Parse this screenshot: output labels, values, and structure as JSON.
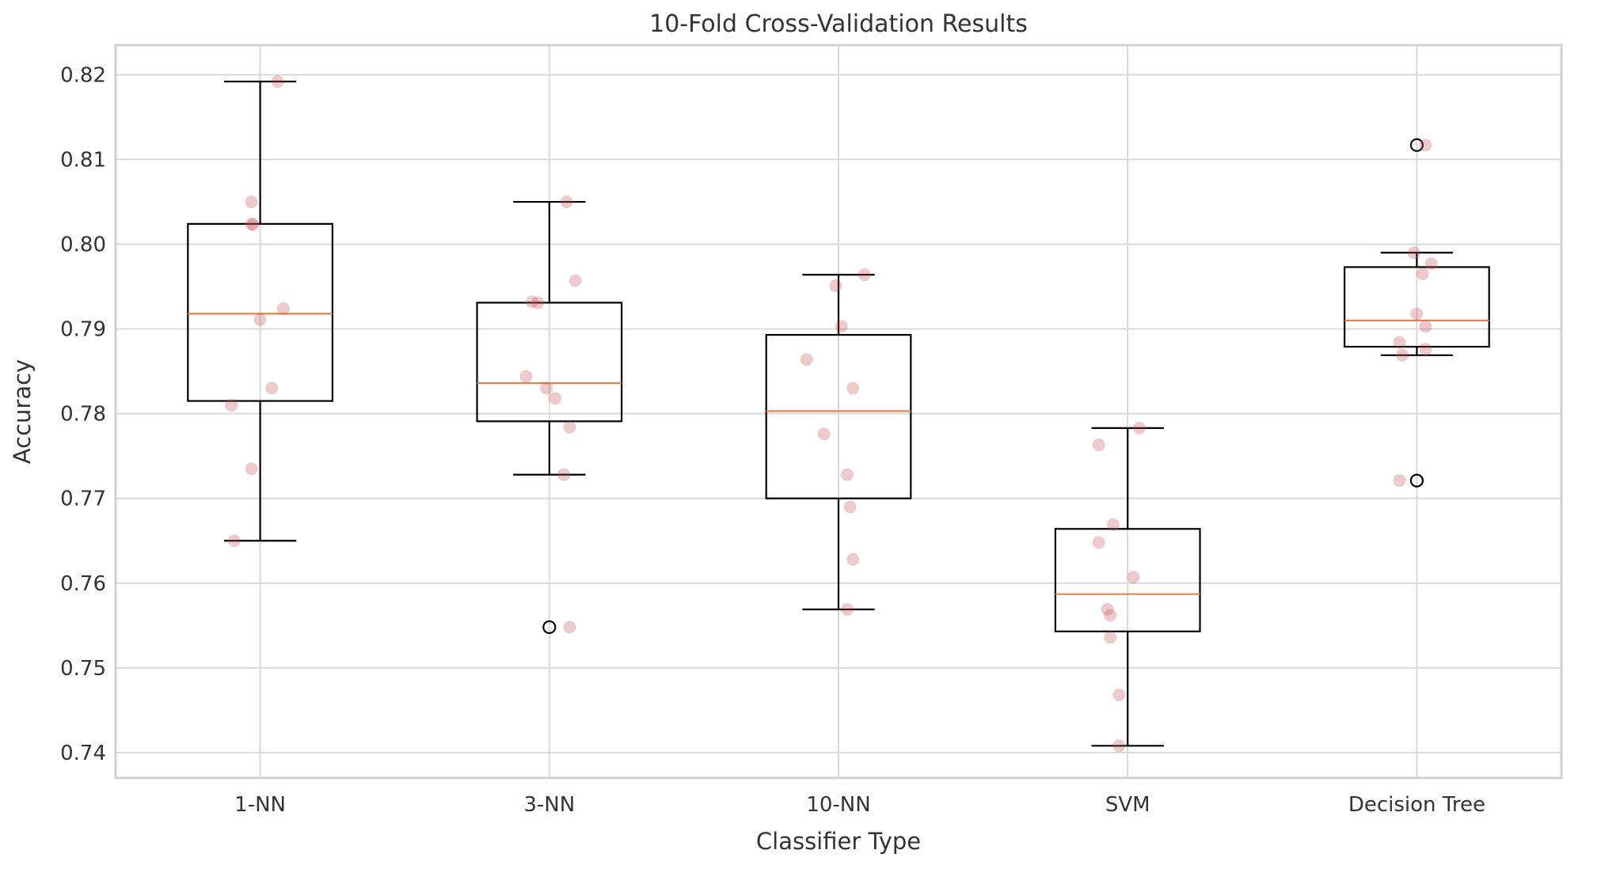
{
  "chart_data": {
    "type": "box",
    "title": "10-Fold Cross-Validation Results",
    "xlabel": "Classifier Type",
    "ylabel": "Accuracy",
    "ylim": [
      0.737,
      0.8235
    ],
    "yticks": [
      0.74,
      0.75,
      0.76,
      0.77,
      0.78,
      0.79,
      0.8,
      0.81,
      0.82
    ],
    "ytick_labels": [
      "0.74",
      "0.75",
      "0.76",
      "0.77",
      "0.78",
      "0.79",
      "0.80",
      "0.81",
      "0.82"
    ],
    "grid": true,
    "categories": [
      "1-NN",
      "3-NN",
      "10-NN",
      "SVM",
      "Decision Tree"
    ],
    "colors": {
      "box": "#000000",
      "median": "#dd8452",
      "points": "#c44e52",
      "grid": "#d9d9d9",
      "frame": "#d0d0d0"
    },
    "boxes": [
      {
        "name": "1-NN",
        "q1": 0.7815,
        "median": 0.7918,
        "q3": 0.8024,
        "whisker_low": 0.765,
        "whisker_high": 0.8192,
        "fliers": []
      },
      {
        "name": "3-NN",
        "q1": 0.7791,
        "median": 0.7836,
        "q3": 0.7931,
        "whisker_low": 0.7728,
        "whisker_high": 0.805,
        "fliers": [
          0.7548
        ]
      },
      {
        "name": "10-NN",
        "q1": 0.77,
        "median": 0.7803,
        "q3": 0.7893,
        "whisker_low": 0.7569,
        "whisker_high": 0.7964,
        "fliers": []
      },
      {
        "name": "SVM",
        "q1": 0.7543,
        "median": 0.7587,
        "q3": 0.7664,
        "whisker_low": 0.7408,
        "whisker_high": 0.7783,
        "fliers": []
      },
      {
        "name": "Decision Tree",
        "q1": 0.7879,
        "median": 0.791,
        "q3": 0.7973,
        "whisker_low": 0.7869,
        "whisker_high": 0.799,
        "fliers": [
          0.8117,
          0.7721
        ]
      }
    ],
    "jitter_points": [
      {
        "category": "1-NN",
        "x_offset": 0.06,
        "y": 0.8192
      },
      {
        "category": "1-NN",
        "x_offset": -0.03,
        "y": 0.805
      },
      {
        "category": "1-NN",
        "x_offset": -0.03,
        "y": 0.8024
      },
      {
        "category": "1-NN",
        "x_offset": -0.025,
        "y": 0.8023
      },
      {
        "category": "1-NN",
        "x_offset": 0.08,
        "y": 0.7924
      },
      {
        "category": "1-NN",
        "x_offset": 0.0,
        "y": 0.7911
      },
      {
        "category": "1-NN",
        "x_offset": 0.04,
        "y": 0.783
      },
      {
        "category": "1-NN",
        "x_offset": -0.1,
        "y": 0.781
      },
      {
        "category": "1-NN",
        "x_offset": -0.03,
        "y": 0.7735
      },
      {
        "category": "1-NN",
        "x_offset": -0.09,
        "y": 0.765
      },
      {
        "category": "3-NN",
        "x_offset": 0.06,
        "y": 0.805
      },
      {
        "category": "3-NN",
        "x_offset": 0.09,
        "y": 0.7957
      },
      {
        "category": "3-NN",
        "x_offset": -0.06,
        "y": 0.7932
      },
      {
        "category": "3-NN",
        "x_offset": -0.04,
        "y": 0.7931
      },
      {
        "category": "3-NN",
        "x_offset": -0.08,
        "y": 0.7844
      },
      {
        "category": "3-NN",
        "x_offset": -0.01,
        "y": 0.783
      },
      {
        "category": "3-NN",
        "x_offset": 0.02,
        "y": 0.7818
      },
      {
        "category": "3-NN",
        "x_offset": 0.07,
        "y": 0.7784
      },
      {
        "category": "3-NN",
        "x_offset": 0.05,
        "y": 0.7728
      },
      {
        "category": "3-NN",
        "x_offset": 0.07,
        "y": 0.7548
      },
      {
        "category": "10-NN",
        "x_offset": 0.09,
        "y": 0.7964
      },
      {
        "category": "10-NN",
        "x_offset": -0.01,
        "y": 0.7951
      },
      {
        "category": "10-NN",
        "x_offset": 0.01,
        "y": 0.7903
      },
      {
        "category": "10-NN",
        "x_offset": -0.11,
        "y": 0.7864
      },
      {
        "category": "10-NN",
        "x_offset": 0.05,
        "y": 0.783
      },
      {
        "category": "10-NN",
        "x_offset": -0.05,
        "y": 0.7776
      },
      {
        "category": "10-NN",
        "x_offset": 0.03,
        "y": 0.7728
      },
      {
        "category": "10-NN",
        "x_offset": 0.04,
        "y": 0.769
      },
      {
        "category": "10-NN",
        "x_offset": 0.05,
        "y": 0.7628
      },
      {
        "category": "10-NN",
        "x_offset": 0.03,
        "y": 0.7569
      },
      {
        "category": "SVM",
        "x_offset": 0.04,
        "y": 0.7783
      },
      {
        "category": "SVM",
        "x_offset": -0.1,
        "y": 0.7763
      },
      {
        "category": "SVM",
        "x_offset": -0.05,
        "y": 0.7669
      },
      {
        "category": "SVM",
        "x_offset": -0.1,
        "y": 0.7648
      },
      {
        "category": "SVM",
        "x_offset": 0.02,
        "y": 0.7607
      },
      {
        "category": "SVM",
        "x_offset": -0.07,
        "y": 0.7569
      },
      {
        "category": "SVM",
        "x_offset": -0.06,
        "y": 0.7562
      },
      {
        "category": "SVM",
        "x_offset": -0.06,
        "y": 0.7536
      },
      {
        "category": "SVM",
        "x_offset": -0.03,
        "y": 0.7468
      },
      {
        "category": "SVM",
        "x_offset": -0.03,
        "y": 0.7408
      },
      {
        "category": "Decision Tree",
        "x_offset": 0.03,
        "y": 0.8117
      },
      {
        "category": "Decision Tree",
        "x_offset": -0.01,
        "y": 0.799
      },
      {
        "category": "Decision Tree",
        "x_offset": 0.05,
        "y": 0.7977
      },
      {
        "category": "Decision Tree",
        "x_offset": 0.02,
        "y": 0.7965
      },
      {
        "category": "Decision Tree",
        "x_offset": 0.0,
        "y": 0.7918
      },
      {
        "category": "Decision Tree",
        "x_offset": 0.03,
        "y": 0.7903
      },
      {
        "category": "Decision Tree",
        "x_offset": -0.06,
        "y": 0.7884
      },
      {
        "category": "Decision Tree",
        "x_offset": 0.03,
        "y": 0.7876
      },
      {
        "category": "Decision Tree",
        "x_offset": -0.05,
        "y": 0.7869
      },
      {
        "category": "Decision Tree",
        "x_offset": -0.06,
        "y": 0.7721
      }
    ]
  }
}
